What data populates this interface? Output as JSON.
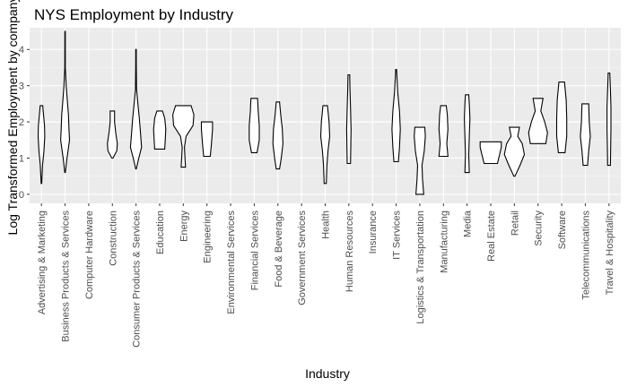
{
  "chart_data": {
    "type": "violin",
    "title": "NYS Employment by Industry",
    "xlabel": "Industry",
    "ylabel": "Log Transformed Employment by company",
    "ylim": [
      -0.25,
      4.6
    ],
    "yticks": [
      0,
      1,
      2,
      3,
      4
    ],
    "grid": true,
    "legend": "none",
    "categories": [
      "Advertising & Marketing",
      "Business Products & Services",
      "Computer Hardware",
      "Construction",
      "Consumer Products & Services",
      "Education",
      "Energy",
      "Engineering",
      "Environmental Services",
      "Financial Services",
      "Food & Beverage",
      "Government Services",
      "Health",
      "Human Resources",
      "Insurance",
      "IT Services",
      "Logistics & Transportation",
      "Manufacturing",
      "Media",
      "Real Estate",
      "Retail",
      "Security",
      "Software",
      "Telecommunications",
      "Travel & Hospitality"
    ],
    "violins": [
      {
        "category": "Advertising & Marketing",
        "profile": [
          [
            0.3,
            0.2
          ],
          [
            0.8,
            0.8
          ],
          [
            1.2,
            1.8
          ],
          [
            1.6,
            2.4
          ],
          [
            1.9,
            2.2
          ],
          [
            2.2,
            1.5
          ],
          [
            2.45,
            0.9
          ]
        ]
      },
      {
        "category": "Business Products & Services",
        "profile": [
          [
            0.6,
            0.2
          ],
          [
            1.0,
            1.4
          ],
          [
            1.5,
            3.2
          ],
          [
            1.8,
            2.8
          ],
          [
            2.2,
            2.4
          ],
          [
            2.6,
            1.6
          ],
          [
            3.0,
            0.8
          ],
          [
            3.5,
            0.2
          ],
          [
            4.5,
            0.15
          ]
        ]
      },
      {
        "category": "Computer Hardware",
        "profile": []
      },
      {
        "category": "Construction",
        "profile": [
          [
            1.0,
            0.4
          ],
          [
            1.2,
            3.2
          ],
          [
            1.4,
            3.6
          ],
          [
            1.7,
            2.4
          ],
          [
            2.0,
            1.6
          ],
          [
            2.3,
            1.6
          ]
        ]
      },
      {
        "category": "Consumer Products & Services",
        "profile": [
          [
            0.7,
            0.2
          ],
          [
            1.0,
            2.0
          ],
          [
            1.3,
            4.0
          ],
          [
            1.7,
            3.2
          ],
          [
            2.1,
            2.4
          ],
          [
            2.4,
            1.6
          ],
          [
            2.9,
            0.4
          ],
          [
            3.6,
            0.2
          ],
          [
            4.0,
            0.2
          ]
        ]
      },
      {
        "category": "Education",
        "profile": [
          [
            1.25,
            3.6
          ],
          [
            1.5,
            4.0
          ],
          [
            1.8,
            4.4
          ],
          [
            2.1,
            3.6
          ],
          [
            2.3,
            2.0
          ]
        ]
      },
      {
        "category": "Energy",
        "profile": [
          [
            0.75,
            1.6
          ],
          [
            1.0,
            1.2
          ],
          [
            1.3,
            0.8
          ],
          [
            1.6,
            2.0
          ],
          [
            1.9,
            7.0
          ],
          [
            2.2,
            7.6
          ],
          [
            2.45,
            5.6
          ]
        ]
      },
      {
        "category": "Engineering",
        "profile": [
          [
            1.05,
            2.4
          ],
          [
            1.4,
            3.2
          ],
          [
            1.8,
            4.0
          ],
          [
            2.0,
            4.0
          ]
        ]
      },
      {
        "category": "Environmental Services",
        "profile": []
      },
      {
        "category": "Financial Services",
        "profile": [
          [
            1.15,
            2.0
          ],
          [
            1.5,
            3.6
          ],
          [
            1.9,
            3.6
          ],
          [
            2.3,
            2.8
          ],
          [
            2.65,
            2.4
          ]
        ]
      },
      {
        "category": "Food & Beverage",
        "profile": [
          [
            0.7,
            1.2
          ],
          [
            1.0,
            2.4
          ],
          [
            1.4,
            3.6
          ],
          [
            1.8,
            3.2
          ],
          [
            2.2,
            2.0
          ],
          [
            2.55,
            1.2
          ]
        ]
      },
      {
        "category": "Government Services",
        "profile": []
      },
      {
        "category": "Health",
        "profile": [
          [
            0.3,
            0.8
          ],
          [
            0.8,
            1.2
          ],
          [
            1.2,
            2.0
          ],
          [
            1.6,
            3.2
          ],
          [
            2.0,
            2.8
          ],
          [
            2.45,
            1.6
          ]
        ]
      },
      {
        "category": "Human Resources",
        "profile": [
          [
            0.85,
            1.2
          ],
          [
            1.3,
            1.4
          ],
          [
            1.8,
            1.6
          ],
          [
            2.4,
            1.2
          ],
          [
            2.9,
            0.8
          ],
          [
            3.3,
            0.6
          ]
        ]
      },
      {
        "category": "Insurance",
        "profile": []
      },
      {
        "category": "IT Services",
        "profile": [
          [
            0.9,
            1.6
          ],
          [
            1.3,
            2.4
          ],
          [
            1.8,
            3.0
          ],
          [
            2.3,
            2.4
          ],
          [
            2.8,
            1.2
          ],
          [
            3.45,
            0.3
          ]
        ]
      },
      {
        "category": "Logistics & Transportation",
        "profile": [
          [
            0.0,
            2.8
          ],
          [
            0.4,
            2.0
          ],
          [
            0.8,
            1.6
          ],
          [
            1.2,
            3.2
          ],
          [
            1.6,
            4.0
          ],
          [
            1.85,
            3.6
          ]
        ]
      },
      {
        "category": "Manufacturing",
        "profile": [
          [
            1.05,
            3.2
          ],
          [
            1.4,
            2.4
          ],
          [
            1.8,
            3.2
          ],
          [
            2.2,
            2.8
          ],
          [
            2.45,
            2.0
          ]
        ]
      },
      {
        "category": "Media",
        "profile": [
          [
            0.6,
            1.6
          ],
          [
            1.1,
            1.2
          ],
          [
            1.6,
            1.6
          ],
          [
            2.1,
            2.0
          ],
          [
            2.5,
            1.6
          ],
          [
            2.75,
            1.2
          ]
        ]
      },
      {
        "category": "Real Estate",
        "profile": [
          [
            0.85,
            4.8
          ],
          [
            1.1,
            6.4
          ],
          [
            1.3,
            7.6
          ],
          [
            1.45,
            7.6
          ]
        ]
      },
      {
        "category": "Retail",
        "profile": [
          [
            0.5,
            0.4
          ],
          [
            0.8,
            4.0
          ],
          [
            1.1,
            7.2
          ],
          [
            1.4,
            5.6
          ],
          [
            1.6,
            2.4
          ],
          [
            1.85,
            3.6
          ]
        ]
      },
      {
        "category": "Security",
        "profile": [
          [
            1.4,
            5.6
          ],
          [
            1.7,
            6.8
          ],
          [
            2.0,
            4.8
          ],
          [
            2.3,
            2.0
          ],
          [
            2.65,
            3.6
          ]
        ]
      },
      {
        "category": "Software",
        "profile": [
          [
            1.15,
            2.4
          ],
          [
            1.6,
            3.6
          ],
          [
            2.1,
            3.6
          ],
          [
            2.6,
            3.2
          ],
          [
            3.1,
            2.0
          ]
        ]
      },
      {
        "category": "Telecommunications",
        "profile": [
          [
            0.8,
            1.6
          ],
          [
            1.2,
            2.4
          ],
          [
            1.6,
            3.6
          ],
          [
            2.0,
            2.8
          ],
          [
            2.5,
            2.4
          ]
        ]
      },
      {
        "category": "Travel & Hospitality",
        "profile": [
          [
            0.8,
            1.0
          ],
          [
            1.3,
            1.2
          ],
          [
            1.8,
            1.4
          ],
          [
            2.4,
            1.4
          ],
          [
            2.9,
            1.0
          ],
          [
            3.35,
            0.6
          ]
        ]
      }
    ]
  }
}
